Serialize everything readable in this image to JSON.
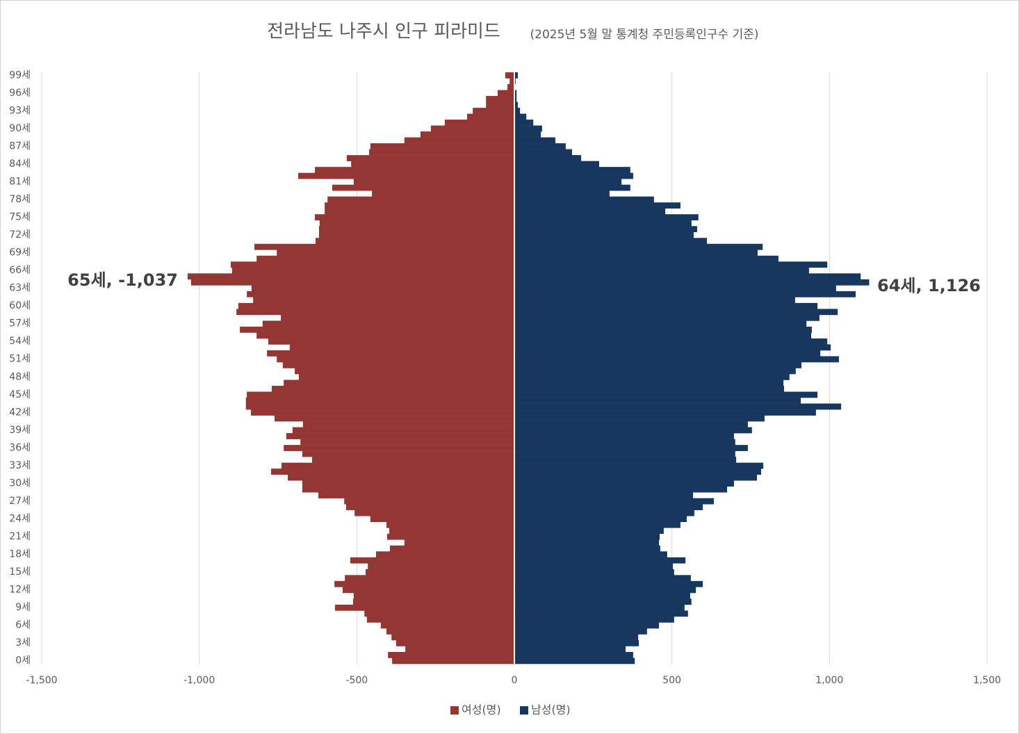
{
  "chart_data": {
    "type": "pyramid",
    "title": "전라남도 나주시 인구 피라미드",
    "subtitle": "(2025년 5월 말 통계청 주민등록인구수 기준)",
    "annotations": [
      "65세, -1,037",
      "64세, 1,126"
    ],
    "categories": [
      "0세",
      null,
      null,
      "3세",
      null,
      null,
      "6세",
      null,
      null,
      "9세",
      null,
      null,
      "12세",
      null,
      null,
      "15세",
      null,
      null,
      "18세",
      null,
      null,
      "21세",
      null,
      null,
      "24세",
      null,
      null,
      "27세",
      null,
      null,
      "30세",
      null,
      null,
      "33세",
      null,
      null,
      "36세",
      null,
      null,
      "39세",
      null,
      null,
      "42세",
      null,
      null,
      "45세",
      null,
      null,
      "48세",
      null,
      null,
      "51세",
      null,
      null,
      "54세",
      null,
      null,
      "57세",
      null,
      null,
      "60세",
      null,
      null,
      "63세",
      null,
      null,
      "66세",
      null,
      null,
      "69세",
      null,
      null,
      "72세",
      null,
      null,
      "75세",
      null,
      null,
      "78세",
      null,
      null,
      "81세",
      null,
      null,
      "84세",
      null,
      null,
      "87세",
      null,
      null,
      "90세",
      null,
      null,
      "93세",
      null,
      null,
      "96세",
      null,
      null,
      "99세"
    ],
    "series": [
      {
        "name": "여성(명)",
        "color": "#943634",
        "values": [
          -388,
          -401,
          -346,
          -375,
          -390,
          -406,
          -424,
          -468,
          -476,
          -569,
          -512,
          -510,
          -545,
          -571,
          -538,
          -472,
          -465,
          -521,
          -439,
          -395,
          -349,
          -404,
          -397,
          -406,
          -457,
          -507,
          -534,
          -540,
          -622,
          -673,
          -673,
          -719,
          -772,
          -739,
          -642,
          -673,
          -732,
          -679,
          -724,
          -704,
          -671,
          -761,
          -836,
          -852,
          -852,
          -849,
          -770,
          -732,
          -684,
          -697,
          -735,
          -754,
          -785,
          -713,
          -781,
          -818,
          -871,
          -799,
          -741,
          -882,
          -876,
          -829,
          -849,
          -834,
          -1026,
          -1037,
          -896,
          -900,
          -818,
          -754,
          -825,
          -631,
          -620,
          -620,
          -618,
          -633,
          -602,
          -602,
          -593,
          -452,
          -578,
          -510,
          -686,
          -633,
          -518,
          -532,
          -461,
          -457,
          -349,
          -298,
          -265,
          -221,
          -150,
          -132,
          -90,
          -90,
          -53,
          -22,
          -15,
          -29
        ]
      },
      {
        "name": "남성(명)",
        "color": "#17375e",
        "values": [
          382,
          377,
          353,
          395,
          393,
          421,
          459,
          507,
          551,
          540,
          562,
          558,
          576,
          598,
          560,
          507,
          503,
          543,
          485,
          463,
          459,
          461,
          474,
          527,
          547,
          571,
          598,
          633,
          567,
          675,
          697,
          770,
          783,
          790,
          704,
          701,
          741,
          701,
          697,
          754,
          741,
          794,
          957,
          1037,
          909,
          962,
          856,
          854,
          873,
          893,
          911,
          1030,
          971,
          1004,
          993,
          942,
          944,
          927,
          968,
          1026,
          962,
          891,
          1083,
          1021,
          1126,
          1099,
          935,
          993,
          838,
          772,
          788,
          611,
          569,
          580,
          562,
          584,
          479,
          527,
          443,
          302,
          368,
          340,
          377,
          368,
          269,
          212,
          183,
          163,
          130,
          84,
          88,
          60,
          38,
          18,
          11,
          7,
          7,
          2,
          4,
          11
        ]
      }
    ],
    "xlim": [
      -1500,
      1500
    ],
    "xticks": [
      {
        "value": -1500,
        "label": "-1,500"
      },
      {
        "value": -1000,
        "label": "-1,000"
      },
      -500,
      0,
      500,
      {
        "value": 1000,
        "label": "1,000"
      },
      {
        "value": 1500,
        "label": "1,500"
      }
    ],
    "grid": true,
    "legend": "bottom"
  }
}
